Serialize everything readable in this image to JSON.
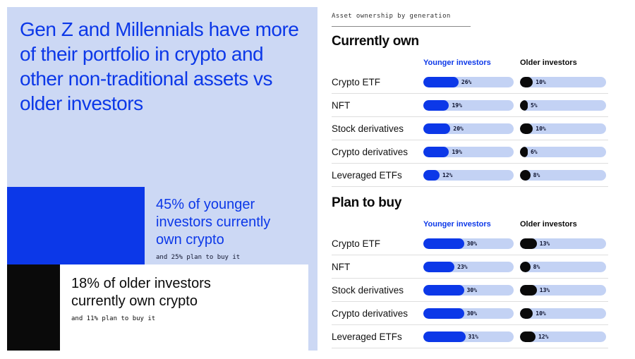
{
  "colors": {
    "blue": "#0c38e8",
    "panel_periwinkle": "#ccd8f4",
    "bar_track": "#c3d2f4",
    "black": "#0a0a0a"
  },
  "left": {
    "headline": "Gen Z and Millennials have more of their portfolio in crypto and other non-traditional assets vs older investors",
    "younger_stat": "45% of younger investors currently own crypto",
    "younger_substat": "and 25% plan to buy it",
    "older_stat": "18% of older investors currently own crypto",
    "older_substat": "and 11% plan to buy it"
  },
  "right": {
    "eyebrow": "Asset ownership by generation",
    "younger_header": "Younger investors",
    "older_header": "Older investors",
    "sections": [
      {
        "title": "Currently own",
        "rows": [
          {
            "label": "Crypto ETF",
            "younger": 26,
            "older": 10
          },
          {
            "label": "NFT",
            "younger": 19,
            "older": 5
          },
          {
            "label": "Stock derivatives",
            "younger": 20,
            "older": 10
          },
          {
            "label": "Crypto derivatives",
            "younger": 19,
            "older": 6
          },
          {
            "label": "Leveraged ETFs",
            "younger": 12,
            "older": 8
          }
        ]
      },
      {
        "title": "Plan to buy",
        "rows": [
          {
            "label": "Crypto ETF",
            "younger": 30,
            "older": 13
          },
          {
            "label": "NFT",
            "younger": 23,
            "older": 8
          },
          {
            "label": "Stock derivatives",
            "younger": 30,
            "older": 13
          },
          {
            "label": "Crypto derivatives",
            "younger": 30,
            "older": 10
          },
          {
            "label": "Leveraged ETFs",
            "younger": 31,
            "older": 12
          }
        ]
      }
    ]
  },
  "chart_data": [
    {
      "type": "bar",
      "title": "Currently own",
      "subtitle": "Asset ownership by generation",
      "categories": [
        "Crypto ETF",
        "NFT",
        "Stock derivatives",
        "Crypto derivatives",
        "Leveraged ETFs"
      ],
      "series": [
        {
          "name": "Younger investors",
          "values": [
            26,
            19,
            20,
            19,
            12
          ]
        },
        {
          "name": "Older investors",
          "values": [
            10,
            5,
            10,
            6,
            8
          ]
        }
      ],
      "unit": "%",
      "legend_position": "top",
      "grid": false
    },
    {
      "type": "bar",
      "title": "Plan to buy",
      "subtitle": "Asset ownership by generation",
      "categories": [
        "Crypto ETF",
        "NFT",
        "Stock derivatives",
        "Crypto derivatives",
        "Leveraged ETFs"
      ],
      "series": [
        {
          "name": "Younger investors",
          "values": [
            30,
            23,
            30,
            30,
            31
          ]
        },
        {
          "name": "Older investors",
          "values": [
            13,
            8,
            13,
            10,
            12
          ]
        }
      ],
      "unit": "%",
      "legend_position": "top",
      "grid": false
    }
  ]
}
